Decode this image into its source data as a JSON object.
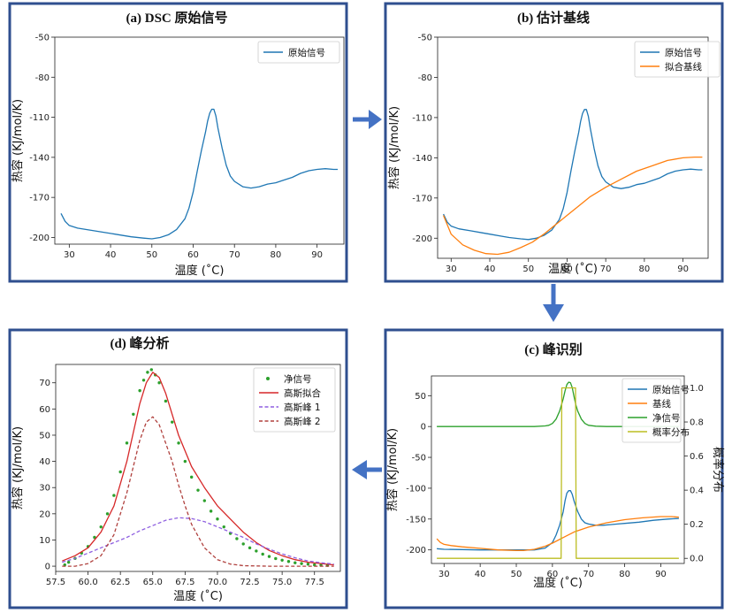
{
  "chart_data": [
    {
      "type": "line",
      "title": "(a) DSC 原始信号",
      "xlabel": "温度 (˚C)",
      "ylabel": "热容 (KJ/mol/K)",
      "xlim": [
        26.5,
        96.5
      ],
      "ylim": [
        -205,
        -50
      ],
      "xticks": [
        "30",
        "40",
        "50",
        "60",
        "70",
        "80",
        "90"
      ],
      "yticks": [
        "-50",
        "-80",
        "-110",
        "-140",
        "-170",
        "-200"
      ],
      "series": [
        {
          "name": "原始信号",
          "color": "#1f77b4",
          "x": [
            28,
            29,
            30,
            32,
            35,
            38,
            40,
            43,
            45,
            48,
            50,
            52,
            54,
            56,
            58,
            59,
            60,
            61,
            62,
            63,
            63.5,
            64,
            64.5,
            65,
            65.5,
            66,
            67,
            68,
            69,
            70,
            72,
            74,
            76,
            78,
            80,
            82,
            84,
            86,
            88,
            90,
            92,
            94,
            95
          ],
          "y": [
            -182,
            -188,
            -191,
            -193,
            -194.5,
            -196,
            -197,
            -198.5,
            -199.5,
            -200.5,
            -201,
            -200,
            -198,
            -194,
            -186,
            -178,
            -166,
            -150,
            -135,
            -121,
            -113,
            -107,
            -104,
            -104,
            -109,
            -118,
            -133,
            -146,
            -154,
            -158,
            -162,
            -163,
            -162,
            -160,
            -159,
            -157,
            -155,
            -152,
            -150,
            -149,
            -148.5,
            -149,
            -149
          ]
        }
      ]
    },
    {
      "type": "line",
      "title": "(b) 估计基线",
      "xlabel": "温度 (˚C)",
      "ylabel": "热容 (KJ/mol/K)",
      "xlim": [
        26.5,
        96.5
      ],
      "ylim": [
        -215,
        -50
      ],
      "xticks": [
        "30",
        "40",
        "50",
        "60",
        "70",
        "80",
        "90"
      ],
      "yticks": [
        "-50",
        "-80",
        "-110",
        "-140",
        "-170",
        "-200"
      ],
      "series": [
        {
          "name": "原始信号",
          "color": "#1f77b4",
          "x": [
            28,
            29,
            30,
            32,
            35,
            38,
            40,
            43,
            45,
            48,
            50,
            52,
            54,
            56,
            58,
            59,
            60,
            61,
            62,
            63,
            63.5,
            64,
            64.5,
            65,
            65.5,
            66,
            67,
            68,
            69,
            70,
            72,
            74,
            76,
            78,
            80,
            82,
            84,
            86,
            88,
            90,
            92,
            94,
            95
          ],
          "y": [
            -182,
            -188,
            -191,
            -193,
            -194.5,
            -196,
            -197,
            -198.5,
            -199.5,
            -200.5,
            -201,
            -200,
            -198,
            -194,
            -186,
            -178,
            -166,
            -150,
            -135,
            -121,
            -113,
            -107,
            -104,
            -104,
            -109,
            -118,
            -133,
            -146,
            -154,
            -158,
            -162,
            -163,
            -162,
            -160,
            -159,
            -157,
            -155,
            -152,
            -150,
            -149,
            -148.5,
            -149,
            -149
          ]
        },
        {
          "name": "拟合基线",
          "color": "#ff7f0e",
          "x": [
            28,
            30,
            33,
            36,
            39,
            42,
            45,
            48,
            51,
            54,
            57,
            60,
            63,
            66,
            70,
            74,
            78,
            82,
            86,
            90,
            93,
            95
          ],
          "y": [
            -183,
            -197,
            -205,
            -209,
            -211.5,
            -212,
            -210.5,
            -207,
            -203,
            -197,
            -190,
            -183,
            -176,
            -169,
            -162,
            -156,
            -150,
            -146,
            -142,
            -140,
            -139.5,
            -139.5
          ]
        }
      ]
    },
    {
      "type": "line",
      "title": "(c) 峰识别",
      "xlabel": "温度 (˚C)",
      "ylabel": "热容 (KJ/mol/K)",
      "ylabel_right": "概率分布",
      "xlim": [
        26.5,
        96.5
      ],
      "ylim": [
        -222,
        82
      ],
      "ylim_right": [
        -0.03,
        1.07
      ],
      "xticks": [
        "30",
        "40",
        "50",
        "60",
        "70",
        "80",
        "90"
      ],
      "yticks": [
        "50",
        "0",
        "-50",
        "-100",
        "-150",
        "-200"
      ],
      "yticks_right": [
        "1.0",
        "0.8",
        "0.6",
        "0.4",
        "0.2",
        "0.0"
      ],
      "series": [
        {
          "name": "原始信号",
          "color": "#1f77b4",
          "x": [
            28,
            30,
            35,
            40,
            45,
            50,
            55,
            58,
            60,
            61,
            62,
            63,
            63.5,
            64,
            64.5,
            65,
            65.5,
            66,
            67,
            68,
            69,
            70,
            72,
            74,
            76,
            78,
            80,
            84,
            88,
            92,
            95
          ],
          "y": [
            -198,
            -199,
            -199.5,
            -200,
            -200,
            -200,
            -200,
            -197,
            -188,
            -176,
            -160,
            -138,
            -120,
            -108,
            -104,
            -104,
            -110,
            -121,
            -138,
            -150,
            -156,
            -158,
            -160,
            -160,
            -159,
            -158,
            -157,
            -155,
            -152,
            -150,
            -149
          ]
        },
        {
          "name": "基线",
          "color": "#ff7f0e",
          "x": [
            28,
            29,
            30,
            32,
            35,
            40,
            45,
            50,
            52,
            55,
            58,
            60,
            63,
            66,
            70,
            75,
            80,
            85,
            90,
            93,
            95
          ],
          "y": [
            -182,
            -188,
            -191,
            -193,
            -195,
            -197.5,
            -200,
            -201,
            -201,
            -199,
            -194,
            -189,
            -180,
            -171,
            -163,
            -156,
            -151,
            -148,
            -146,
            -146,
            -147
          ]
        },
        {
          "name": "净信号",
          "color": "#2ca02c",
          "x": [
            28,
            40,
            50,
            55,
            58,
            59,
            60,
            61,
            62,
            63,
            63.5,
            64,
            64.5,
            65,
            65.5,
            66,
            66.5,
            67,
            68,
            69,
            70,
            72,
            75,
            80,
            90,
            95
          ],
          "y": [
            0,
            0,
            0,
            0,
            1,
            2,
            5,
            12,
            25,
            45,
            58,
            68,
            72,
            71,
            63,
            48,
            35,
            25,
            12,
            5,
            2,
            0.5,
            0,
            0,
            0,
            0
          ]
        },
        {
          "name": "概率分布",
          "color": "#bcbd22",
          "axis": "right",
          "x": [
            28,
            50,
            62.4,
            62.6,
            63,
            66,
            66.4,
            66.6,
            80,
            95
          ],
          "y": [
            0,
            0,
            0,
            1,
            1,
            1,
            1,
            0,
            0,
            0
          ]
        }
      ]
    },
    {
      "type": "line",
      "title": "(d) 峰分析",
      "xlabel": "温度 (˚C)",
      "ylabel": "热容 (KJ/mol/K)",
      "xlim": [
        57.5,
        79.5
      ],
      "ylim": [
        -2,
        77
      ],
      "xticks": [
        "57.5",
        "60.0",
        "62.5",
        "65.0",
        "67.5",
        "70.0",
        "72.5",
        "75.0",
        "77.5"
      ],
      "yticks": [
        "0",
        "10",
        "20",
        "30",
        "40",
        "50",
        "60",
        "70"
      ],
      "series": [
        {
          "name": "净信号",
          "color": "#2ca02c",
          "style": "dots",
          "x": [
            58.2,
            58.5,
            59,
            59.5,
            60,
            60.5,
            61,
            61.5,
            62,
            62.5,
            63,
            63.5,
            64,
            64.3,
            64.6,
            64.9,
            65.2,
            65.5,
            66,
            66.5,
            67,
            67.5,
            68,
            68.5,
            69,
            69.5,
            70,
            70.5,
            71,
            71.5,
            72,
            72.5,
            73,
            73.5,
            74,
            74.5,
            75,
            75.5,
            76,
            76.5,
            77,
            77.5,
            78,
            78.5
          ],
          "y": [
            0.5,
            1.5,
            3,
            5,
            7.5,
            11,
            15,
            20,
            27,
            36,
            47,
            58,
            67,
            71,
            74,
            75,
            73,
            70,
            63,
            55,
            47,
            40,
            34,
            29,
            25,
            21,
            18,
            15,
            12.5,
            10.5,
            8.5,
            7,
            5.8,
            4.6,
            3.7,
            2.9,
            2.3,
            1.8,
            1.3,
            1,
            0.8,
            0.5,
            0.4,
            0.3
          ]
        },
        {
          "name": "高斯拟合",
          "color": "#d62728",
          "x": [
            58,
            59,
            60,
            61,
            62,
            63,
            63.5,
            64,
            64.5,
            65,
            65.5,
            66,
            66.5,
            67,
            68,
            69,
            70,
            71,
            72,
            73,
            74,
            75,
            76,
            77,
            78,
            79
          ],
          "y": [
            2,
            4,
            7,
            13,
            23,
            40,
            51,
            62,
            70,
            74,
            72,
            66,
            58,
            50,
            38,
            30,
            23,
            18,
            13,
            9,
            6,
            4,
            2.5,
            1.5,
            1,
            0.5
          ]
        },
        {
          "name": "高斯峰 1",
          "color": "#8e5fe0",
          "style": "dashed",
          "x": [
            58,
            59,
            60,
            61,
            62,
            63,
            64,
            65,
            66,
            67,
            68,
            69,
            70,
            71,
            72,
            73,
            74,
            75,
            76,
            77,
            78,
            79
          ],
          "y": [
            1.5,
            3,
            5,
            7,
            9,
            11,
            13.5,
            15.5,
            17.5,
            18.5,
            18.2,
            17,
            15,
            13,
            11,
            8.5,
            6.5,
            4.7,
            3.2,
            2,
            1.3,
            0.8
          ]
        },
        {
          "name": "高斯峰 2",
          "color": "#b0413e",
          "style": "dashed",
          "x": [
            58,
            59,
            60,
            61,
            62,
            63,
            63.5,
            64,
            64.5,
            65,
            65.5,
            66,
            66.5,
            67,
            67.5,
            68,
            69,
            70,
            71,
            72,
            74,
            76,
            79
          ],
          "y": [
            0,
            0,
            1,
            4,
            12,
            28,
            38,
            48,
            55,
            57,
            54,
            47,
            40,
            31,
            23,
            16,
            7,
            2.5,
            0.8,
            0.2,
            0,
            0,
            0
          ]
        }
      ]
    }
  ]
}
